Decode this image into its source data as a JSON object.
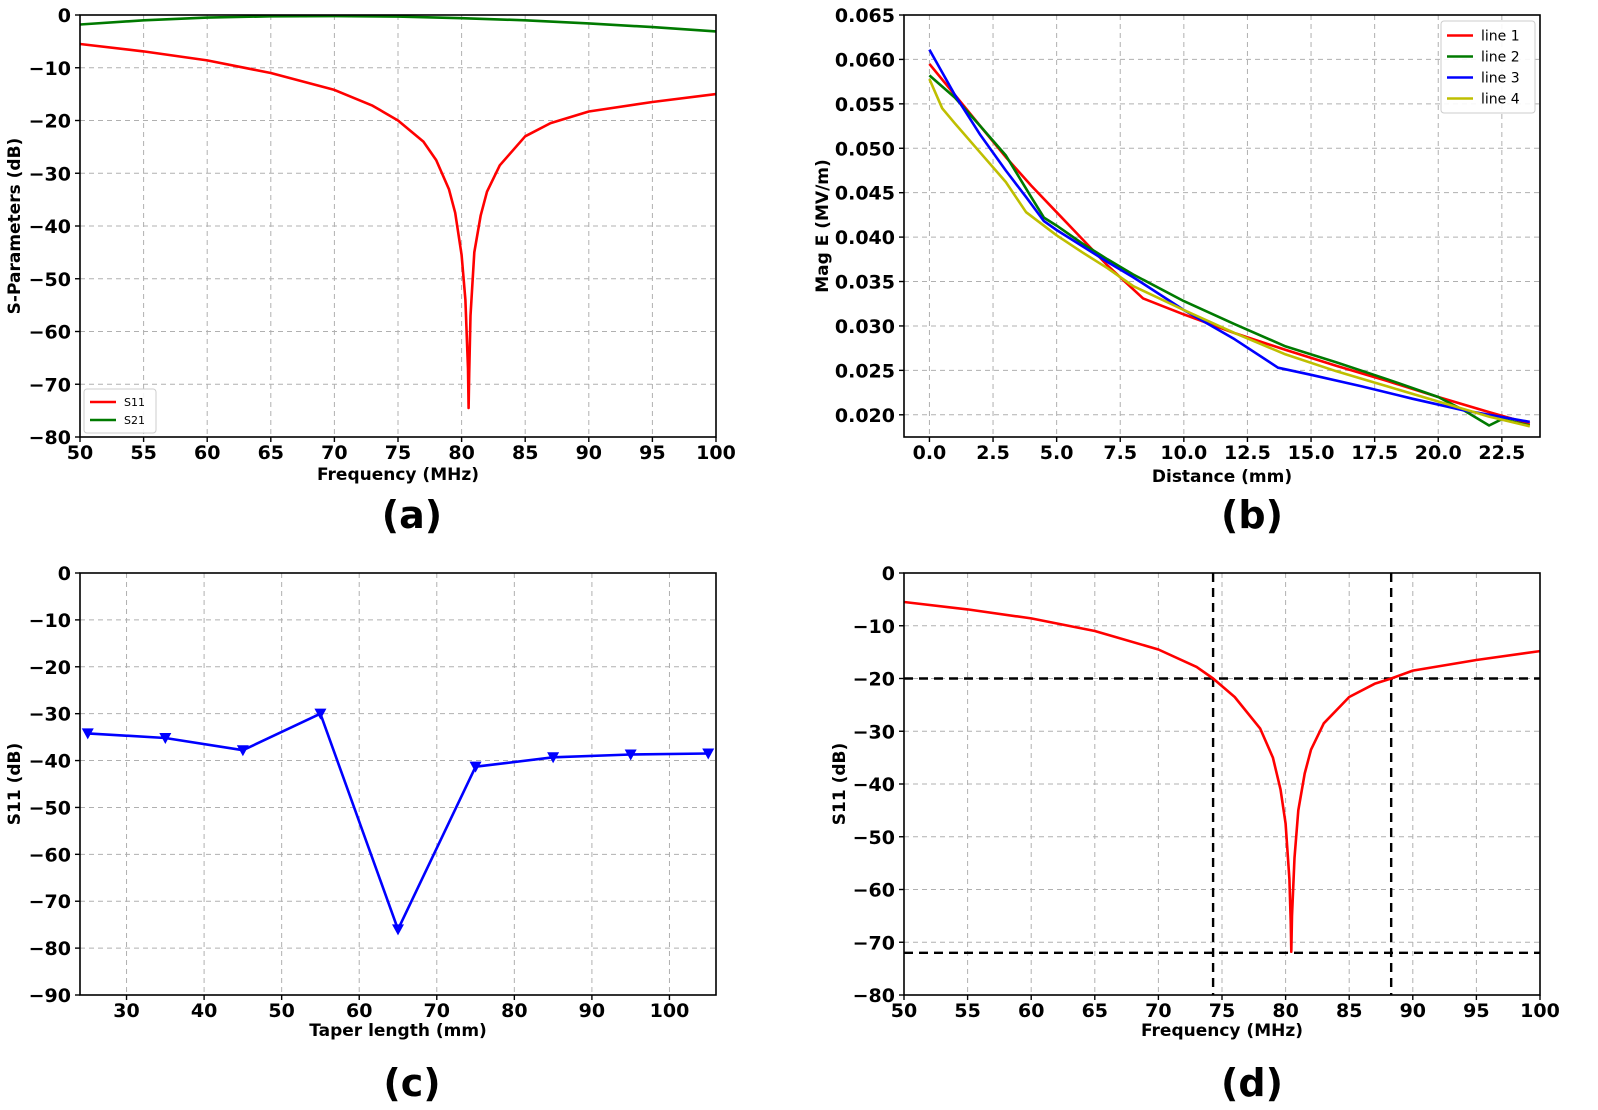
{
  "chart_data": [
    {
      "panel": "a",
      "caption": "(a)",
      "type": "line",
      "xlabel": "Frequency (MHz)",
      "ylabel": "S-Parameters (dB)",
      "xlim": [
        50,
        100
      ],
      "ylim": [
        -80,
        0
      ],
      "xticks": [
        50,
        55,
        60,
        65,
        70,
        75,
        80,
        85,
        90,
        95,
        100
      ],
      "yticks": [
        0,
        -10,
        -20,
        -30,
        -40,
        -50,
        -60,
        -70,
        -80
      ],
      "grid": true,
      "legend_position": "bottom-left",
      "series": [
        {
          "name": "S11",
          "color": "#ff0000",
          "x": [
            50,
            55,
            60,
            65,
            70,
            73,
            75,
            77,
            78,
            79,
            79.5,
            80,
            80.3,
            80.5,
            80.55,
            80.6,
            80.7,
            81,
            81.5,
            82,
            83,
            85,
            87,
            90,
            95,
            100
          ],
          "y": [
            -5.5,
            -6.9,
            -8.6,
            -11.0,
            -14.2,
            -17.2,
            -20.0,
            -24.0,
            -27.5,
            -33.0,
            -37.5,
            -45.5,
            -54.0,
            -67.0,
            -74.5,
            -68.0,
            -57.0,
            -45.0,
            -38.0,
            -33.5,
            -28.5,
            -23.0,
            -20.5,
            -18.3,
            -16.5,
            -15.0
          ]
        },
        {
          "name": "S21",
          "color": "#007a00",
          "x": [
            50,
            55,
            60,
            65,
            70,
            75,
            80,
            85,
            90,
            95,
            100
          ],
          "y": [
            -1.8,
            -1.0,
            -0.5,
            -0.25,
            -0.2,
            -0.3,
            -0.6,
            -1.0,
            -1.6,
            -2.3,
            -3.1
          ]
        }
      ]
    },
    {
      "panel": "b",
      "caption": "(b)",
      "type": "line",
      "xlabel": "Distance (mm)",
      "ylabel": "Mag E  (MV/m)",
      "xlim": [
        -1,
        24
      ],
      "ylim": [
        0.0175,
        0.065
      ],
      "xticks": [
        "0.0",
        "2.5",
        "5.0",
        "7.5",
        "10.0",
        "12.5",
        "15.0",
        "17.5",
        "20.0",
        "22.5"
      ],
      "yticks": [
        "0.020",
        "0.025",
        "0.030",
        "0.035",
        "0.040",
        "0.045",
        "0.050",
        "0.055",
        "0.060",
        "0.065"
      ],
      "grid": true,
      "legend_position": "top-right",
      "series": [
        {
          "name": "line 1",
          "color": "#ff0000",
          "x": [
            0,
            1,
            2,
            3,
            4,
            5,
            6,
            7,
            8.4,
            10,
            12,
            14,
            16,
            18,
            20,
            22,
            23.6
          ],
          "y": [
            0.0595,
            0.056,
            0.0525,
            0.049,
            0.0458,
            0.0428,
            0.0398,
            0.0368,
            0.0331,
            0.0313,
            0.0292,
            0.0273,
            0.0255,
            0.0238,
            0.022,
            0.0203,
            0.019
          ]
        },
        {
          "name": "line 2",
          "color": "#007a00",
          "x": [
            0,
            1,
            2,
            3,
            4,
            4.5,
            5,
            6,
            7,
            8,
            10,
            12,
            14,
            16,
            18,
            20,
            21,
            22,
            22.5,
            23.6
          ],
          "y": [
            0.0582,
            0.0557,
            0.0525,
            0.0492,
            0.0445,
            0.0422,
            0.0413,
            0.0393,
            0.0375,
            0.0358,
            0.0328,
            0.0302,
            0.0277,
            0.0259,
            0.024,
            0.022,
            0.0205,
            0.0188,
            0.0195,
            0.0188
          ]
        },
        {
          "name": "line 3",
          "color": "#0000ff",
          "x": [
            0,
            1,
            2,
            3,
            3.8,
            4.5,
            5,
            6,
            7,
            8,
            10,
            12,
            13.7,
            15,
            17,
            19,
            21,
            23.6
          ],
          "y": [
            0.0611,
            0.056,
            0.0515,
            0.0475,
            0.0445,
            0.0418,
            0.0408,
            0.039,
            0.0372,
            0.0355,
            0.0318,
            0.0285,
            0.0253,
            0.0245,
            0.0232,
            0.0218,
            0.0205,
            0.0192
          ]
        },
        {
          "name": "line 4",
          "color": "#bfbf00",
          "x": [
            0,
            0.5,
            1,
            2,
            3,
            3.8,
            5,
            6,
            7,
            8,
            10,
            12,
            14,
            16,
            18,
            20,
            22,
            23.6
          ],
          "y": [
            0.0578,
            0.0545,
            0.0528,
            0.0495,
            0.0462,
            0.0428,
            0.0402,
            0.0383,
            0.0365,
            0.0345,
            0.0318,
            0.0292,
            0.0268,
            0.0249,
            0.0232,
            0.0215,
            0.0198,
            0.0187
          ]
        }
      ]
    },
    {
      "panel": "c",
      "caption": "(c)",
      "type": "line",
      "xlabel": "Taper length (mm)",
      "ylabel": "S11 (dB)",
      "xlim": [
        24,
        106
      ],
      "ylim": [
        -90,
        0
      ],
      "xticks": [
        30,
        40,
        50,
        60,
        70,
        80,
        90,
        100
      ],
      "yticks": [
        0,
        -10,
        -20,
        -30,
        -40,
        -50,
        -60,
        -70,
        -80,
        -90
      ],
      "grid": true,
      "series": [
        {
          "name": "",
          "color": "#0000ff",
          "marker": "triangle-down",
          "x": [
            25,
            35,
            45,
            55,
            65,
            75,
            85,
            95,
            105
          ],
          "y": [
            -34.2,
            -35.2,
            -37.8,
            -30.0,
            -76.0,
            -41.3,
            -39.3,
            -38.7,
            -38.5
          ]
        }
      ]
    },
    {
      "panel": "d",
      "caption": "(d)",
      "type": "line",
      "xlabel": "Frequency (MHz)",
      "ylabel": "S11 (dB)",
      "xlim": [
        50,
        100
      ],
      "ylim": [
        -80,
        0
      ],
      "xticks": [
        50,
        55,
        60,
        65,
        70,
        75,
        80,
        85,
        90,
        95,
        100
      ],
      "yticks": [
        0,
        -10,
        -20,
        -30,
        -40,
        -50,
        -60,
        -70,
        -80
      ],
      "grid": true,
      "reference_lines": {
        "vertical": [
          74.3,
          88.3
        ],
        "horizontal": [
          -20,
          -72
        ]
      },
      "series": [
        {
          "name": "",
          "color": "#ff0000",
          "x": [
            50,
            55,
            60,
            65,
            70,
            73,
            74.3,
            76,
            78,
            79,
            79.6,
            80,
            80.3,
            80.4,
            80.45,
            80.5,
            80.7,
            81,
            81.5,
            82,
            83,
            85,
            87,
            88.3,
            90,
            95,
            100
          ],
          "y": [
            -5.5,
            -6.9,
            -8.6,
            -11.0,
            -14.5,
            -17.8,
            -20.0,
            -23.5,
            -29.5,
            -35.0,
            -41.0,
            -47.5,
            -58.0,
            -66.0,
            -71.8,
            -65.0,
            -54.0,
            -45.0,
            -38.0,
            -33.5,
            -28.5,
            -23.5,
            -21.0,
            -20.0,
            -18.5,
            -16.5,
            -14.8
          ]
        }
      ]
    }
  ]
}
